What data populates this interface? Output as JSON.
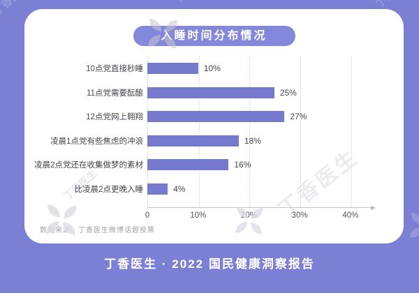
{
  "brand": {
    "watermark_text": "丁香医生"
  },
  "chart_data": {
    "type": "bar",
    "orientation": "horizontal",
    "title": "入睡时间分布情况",
    "categories": [
      "10点党直接秒睡",
      "11点党需要酝酿",
      "12点党网上翱翔",
      "凌晨1点党有些焦虑的冲浪",
      "凌晨2点党还在收集做梦的素材",
      "比凌晨2点更晚入睡"
    ],
    "values": [
      10,
      25,
      27,
      18,
      16,
      4
    ],
    "value_labels": [
      "10%",
      "25%",
      "27%",
      "18%",
      "16%",
      "4%"
    ],
    "ticks": [
      {
        "label": "0",
        "value": 0
      },
      {
        "label": "10%",
        "value": 10
      },
      {
        "label": "20%",
        "value": 20
      },
      {
        "label": "30%",
        "value": 30
      },
      {
        "label": "40%",
        "value": 40
      }
    ],
    "xlim": [
      0,
      44
    ],
    "grid": "vertical-dotted",
    "legend": "none"
  },
  "source": {
    "text": "数据来源：丁香医生微博话题投票"
  },
  "footer": {
    "text": "丁香医生 · 2022 国民健康洞察报告"
  },
  "colors": {
    "background": "#7b80d4",
    "banner": "#8388da",
    "bar": "#767acc",
    "card": "#ffffff",
    "footer_text": "#ffffff"
  }
}
